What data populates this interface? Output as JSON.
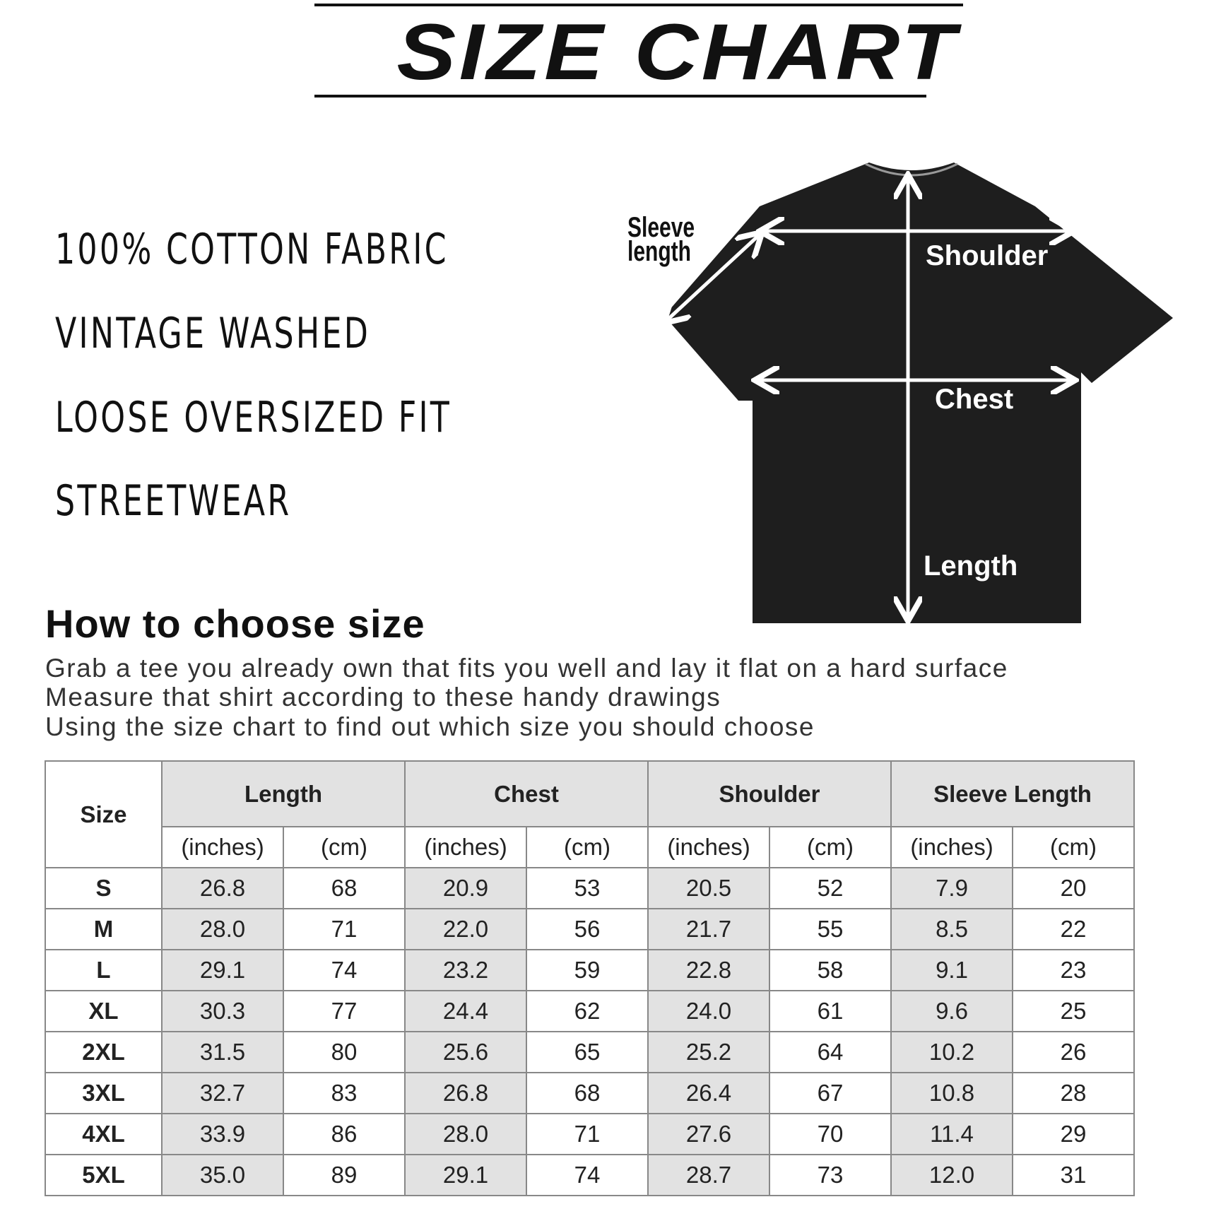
{
  "title": "SIZE CHART",
  "features": [
    "100% COTTON FABRIC",
    "VINTAGE WASHED",
    "LOOSE OVERSIZED FIT",
    "STREETWEAR"
  ],
  "diagram": {
    "sleeve_label": "Sleeve length",
    "shoulder_label": "Shoulder",
    "chest_label": "Chest",
    "length_label": "Length",
    "shirt_color": "#1e1e1e"
  },
  "howto": {
    "heading": "How to choose size",
    "lines": [
      "Grab a tee you already own that fits you well and lay it flat on a hard surface",
      "Measure that shirt according to these handy drawings",
      "Using the size chart to find out which size you should choose"
    ]
  },
  "table": {
    "size_header": "Size",
    "groups": [
      "Length",
      "Chest",
      "Shoulder",
      "Sleeve Length"
    ],
    "units": [
      "(inches)",
      "(cm)"
    ],
    "rows": [
      [
        "S",
        "26.8",
        "68",
        "20.9",
        "53",
        "20.5",
        "52",
        "7.9",
        "20"
      ],
      [
        "M",
        "28.0",
        "71",
        "22.0",
        "56",
        "21.7",
        "55",
        "8.5",
        "22"
      ],
      [
        "L",
        "29.1",
        "74",
        "23.2",
        "59",
        "22.8",
        "58",
        "9.1",
        "23"
      ],
      [
        "XL",
        "30.3",
        "77",
        "24.4",
        "62",
        "24.0",
        "61",
        "9.6",
        "25"
      ],
      [
        "2XL",
        "31.5",
        "80",
        "25.6",
        "65",
        "25.2",
        "64",
        "10.2",
        "26"
      ],
      [
        "3XL",
        "32.7",
        "83",
        "26.8",
        "68",
        "26.4",
        "67",
        "10.8",
        "28"
      ],
      [
        "4XL",
        "33.9",
        "86",
        "28.0",
        "71",
        "27.6",
        "70",
        "11.4",
        "29"
      ],
      [
        "5XL",
        "35.0",
        "89",
        "29.1",
        "74",
        "28.7",
        "73",
        "12.0",
        "31"
      ]
    ]
  }
}
